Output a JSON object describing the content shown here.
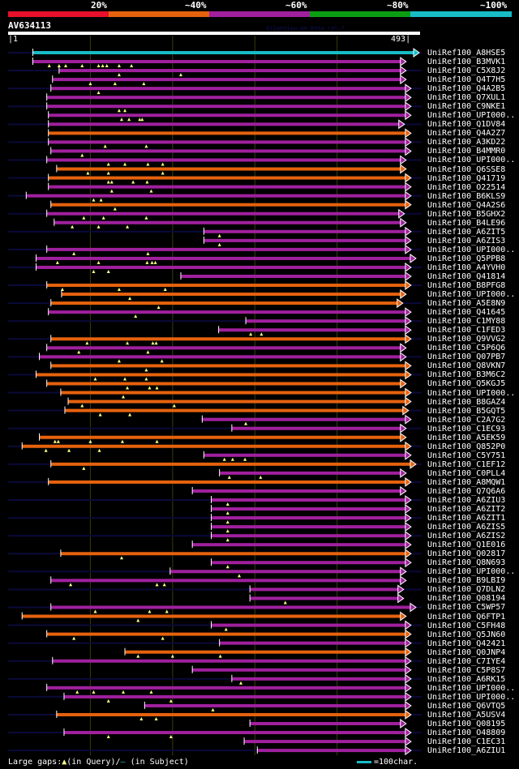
{
  "chart_data": {
    "type": "alignment-overview",
    "title": "AV634113",
    "watermark": "AlignView.pm Beta rel.7",
    "query": {
      "name": "AV634113",
      "start": 1,
      "end": 493
    },
    "identity_scale": [
      {
        "label": "20%",
        "color": "#e8102a"
      },
      {
        "label": "~40%",
        "color": "#e6620e"
      },
      {
        "label": "~60%",
        "color": "#a0209e"
      },
      {
        "label": "~80%",
        "color": "#0c9e12"
      },
      {
        "label": "~100%",
        "color": "#17bcc6"
      }
    ],
    "gridlines_query_pos": [
      100,
      200,
      300,
      400
    ],
    "legend": {
      "large_gaps": "Large gaps:",
      "in_query": "(in Query)/",
      "in_subject": "(in Subject)",
      "scale_key": "=100char."
    },
    "hits": [
      {
        "name": "UniRef100_A8HSE5",
        "start": 30,
        "end": 493,
        "color": "cyan",
        "gaps": []
      },
      {
        "name": "UniRef100_B3MVK1",
        "start": 30,
        "end": 477,
        "color": "purple",
        "gaps": [
          50,
          62,
          70,
          90,
          110,
          115,
          120,
          135,
          150
        ]
      },
      {
        "name": "UniRef100_C5X8J2",
        "start": 62,
        "end": 477,
        "color": "purple",
        "gaps": [
          135,
          210
        ]
      },
      {
        "name": "UniRef100_Q4T7H5",
        "start": 54,
        "end": 477,
        "color": "purple",
        "gaps": [
          100,
          130,
          165
        ]
      },
      {
        "name": "UniRef100_Q4A2B5",
        "start": 52,
        "end": 483,
        "color": "purple",
        "gaps": [
          110
        ]
      },
      {
        "name": "UniRef100_Q7XUL1",
        "start": 47,
        "end": 483,
        "color": "purple",
        "gaps": []
      },
      {
        "name": "UniRef100_C9NKE1",
        "start": 47,
        "end": 483,
        "color": "purple",
        "gaps": [
          135,
          142
        ]
      },
      {
        "name": "UniRef100_UPI000..1",
        "start": 49,
        "end": 483,
        "color": "purple",
        "gaps": [
          138,
          147,
          160,
          163
        ]
      },
      {
        "name": "UniRef100_Q1DV84",
        "start": 49,
        "end": 475,
        "color": "purple",
        "gaps": []
      },
      {
        "name": "UniRef100_Q4A2Z7",
        "start": 49,
        "end": 483,
        "color": "orange",
        "gaps": []
      },
      {
        "name": "UniRef100_A3KD22",
        "start": 49,
        "end": 483,
        "color": "purple",
        "gaps": [
          118,
          168
        ]
      },
      {
        "name": "UniRef100_B4MMR0",
        "start": 52,
        "end": 483,
        "color": "purple",
        "gaps": [
          90
        ]
      },
      {
        "name": "UniRef100_UPI000..2",
        "start": 47,
        "end": 477,
        "color": "purple",
        "gaps": [
          122,
          142,
          170,
          188
        ]
      },
      {
        "name": "UniRef100_Q6SSE8",
        "start": 59,
        "end": 477,
        "color": "orange",
        "gaps": [
          97,
          122,
          188
        ]
      },
      {
        "name": "UniRef100_Q41719",
        "start": 49,
        "end": 483,
        "color": "orange",
        "gaps": [
          122,
          126,
          152,
          169
        ]
      },
      {
        "name": "UniRef100_O22514",
        "start": 49,
        "end": 483,
        "color": "purple",
        "gaps": [
          126,
          174
        ]
      },
      {
        "name": "UniRef100_B6KLS9",
        "start": 22,
        "end": 483,
        "color": "purple",
        "gaps": [
          104,
          113
        ]
      },
      {
        "name": "UniRef100_Q4A2S6",
        "start": 52,
        "end": 483,
        "color": "orange",
        "gaps": [
          130
        ]
      },
      {
        "name": "UniRef100_B5GHX2",
        "start": 47,
        "end": 475,
        "color": "purple",
        "gaps": [
          92,
          116,
          168
        ]
      },
      {
        "name": "UniRef100_B4LE96",
        "start": 56,
        "end": 477,
        "color": "purple",
        "gaps": [
          78,
          110,
          145
        ]
      },
      {
        "name": "UniRef100_A6ZIT5",
        "start": 238,
        "end": 483,
        "color": "purple",
        "gaps": [
          257
        ]
      },
      {
        "name": "UniRef100_A6ZIS3",
        "start": 238,
        "end": 483,
        "color": "purple",
        "gaps": [
          257
        ]
      },
      {
        "name": "UniRef100_UPI000..3",
        "start": 47,
        "end": 483,
        "color": "purple",
        "gaps": [
          80,
          170
        ]
      },
      {
        "name": "UniRef100_Q5PPB8",
        "start": 34,
        "end": 489,
        "color": "purple",
        "gaps": [
          60,
          110,
          169,
          175,
          179
        ]
      },
      {
        "name": "UniRef100_A4YVH0",
        "start": 34,
        "end": 483,
        "color": "purple",
        "gaps": [
          104,
          122
        ]
      },
      {
        "name": "UniRef100_Q41814",
        "start": 210,
        "end": 483,
        "color": "purple",
        "gaps": []
      },
      {
        "name": "UniRef100_B8PFG8",
        "start": 47,
        "end": 483,
        "color": "orange",
        "gaps": [
          66,
          135,
          191
        ]
      },
      {
        "name": "UniRef100_UPI000..4",
        "start": 65,
        "end": 477,
        "color": "orange",
        "gaps": [
          148
        ]
      },
      {
        "name": "UniRef100_A5E8N9",
        "start": 52,
        "end": 473,
        "color": "orange",
        "gaps": [
          183
        ]
      },
      {
        "name": "UniRef100_Q41645",
        "start": 49,
        "end": 483,
        "color": "purple",
        "gaps": [
          155
        ]
      },
      {
        "name": "UniRef100_C1MY88",
        "start": 289,
        "end": 483,
        "color": "purple",
        "gaps": []
      },
      {
        "name": "UniRef100_C1FED3",
        "start": 256,
        "end": 483,
        "color": "purple",
        "gaps": [
          295,
          308
        ]
      },
      {
        "name": "UniRef100_Q9VVG2",
        "start": 52,
        "end": 483,
        "color": "orange",
        "gaps": [
          96,
          145,
          176,
          180
        ]
      },
      {
        "name": "UniRef100_C5P6Q6",
        "start": 47,
        "end": 477,
        "color": "purple",
        "gaps": [
          86,
          170
        ]
      },
      {
        "name": "UniRef100_Q07PB7",
        "start": 38,
        "end": 477,
        "color": "purple",
        "gaps": [
          135,
          187
        ]
      },
      {
        "name": "UniRef100_Q8VKN7",
        "start": 52,
        "end": 483,
        "color": "orange",
        "gaps": [
          168
        ]
      },
      {
        "name": "UniRef100_B3M6C2",
        "start": 34,
        "end": 483,
        "color": "orange",
        "gaps": [
          106,
          142,
          168
        ]
      },
      {
        "name": "UniRef100_Q5KGJ5",
        "start": 47,
        "end": 477,
        "color": "orange",
        "gaps": [
          145,
          172,
          181
        ]
      },
      {
        "name": "UniRef100_UPI000..5",
        "start": 64,
        "end": 483,
        "color": "orange",
        "gaps": [
          140
        ]
      },
      {
        "name": "UniRef100_B8GAZ4",
        "start": 73,
        "end": 483,
        "color": "orange",
        "gaps": [
          90,
          202
        ]
      },
      {
        "name": "UniRef100_B5GQT5",
        "start": 69,
        "end": 480,
        "color": "orange",
        "gaps": [
          112,
          148
        ]
      },
      {
        "name": "UniRef100_C2A7G2",
        "start": 236,
        "end": 483,
        "color": "purple",
        "gaps": [
          289
        ]
      },
      {
        "name": "UniRef100_C1EC93",
        "start": 272,
        "end": 477,
        "color": "purple",
        "gaps": []
      },
      {
        "name": "UniRef100_A5EK59",
        "start": 38,
        "end": 477,
        "color": "orange",
        "gaps": [
          57,
          61,
          100,
          139,
          181
        ]
      },
      {
        "name": "UniRef100_Q852P0",
        "start": 17,
        "end": 483,
        "color": "orange",
        "gaps": [
          46,
          74,
          111
        ]
      },
      {
        "name": "UniRef100_C5Y751",
        "start": 238,
        "end": 483,
        "color": "purple",
        "gaps": [
          263,
          273,
          288
        ]
      },
      {
        "name": "UniRef100_C1EF12",
        "start": 52,
        "end": 489,
        "color": "orange",
        "gaps": [
          92
        ]
      },
      {
        "name": "UniRef100_C0PLL4",
        "start": 257,
        "end": 477,
        "color": "purple",
        "gaps": [
          269,
          307
        ]
      },
      {
        "name": "UniRef100_A8MQW1",
        "start": 49,
        "end": 483,
        "color": "orange",
        "gaps": []
      },
      {
        "name": "UniRef100_Q7Q6A6",
        "start": 224,
        "end": 477,
        "color": "purple",
        "gaps": []
      },
      {
        "name": "UniRef100_A6ZIU3",
        "start": 247,
        "end": 483,
        "color": "purple",
        "gaps": [
          267
        ]
      },
      {
        "name": "UniRef100_A6ZIT2",
        "start": 247,
        "end": 483,
        "color": "purple",
        "gaps": [
          267
        ]
      },
      {
        "name": "UniRef100_A6ZIT1",
        "start": 247,
        "end": 483,
        "color": "purple",
        "gaps": [
          267
        ]
      },
      {
        "name": "UniRef100_A6ZIS5",
        "start": 247,
        "end": 483,
        "color": "purple",
        "gaps": [
          267
        ]
      },
      {
        "name": "UniRef100_A6ZIS2",
        "start": 247,
        "end": 483,
        "color": "purple",
        "gaps": [
          267
        ]
      },
      {
        "name": "UniRef100_Q1E016",
        "start": 224,
        "end": 483,
        "color": "purple",
        "gaps": []
      },
      {
        "name": "UniRef100_Q02817",
        "start": 64,
        "end": 483,
        "color": "orange",
        "gaps": [
          138
        ]
      },
      {
        "name": "UniRef100_Q8N693",
        "start": 247,
        "end": 483,
        "color": "purple",
        "gaps": [
          267
        ]
      },
      {
        "name": "UniRef100_UPI000..6",
        "start": 197,
        "end": 477,
        "color": "purple",
        "gaps": [
          281
        ]
      },
      {
        "name": "UniRef100_B9LBI9",
        "start": 52,
        "end": 477,
        "color": "purple",
        "gaps": [
          76,
          181,
          190
        ]
      },
      {
        "name": "UniRef100_Q7DLN2",
        "start": 294,
        "end": 474,
        "color": "purple",
        "gaps": []
      },
      {
        "name": "UniRef100_Q08194",
        "start": 294,
        "end": 474,
        "color": "purple",
        "gaps": [
          337
        ]
      },
      {
        "name": "UniRef100_C5WP57",
        "start": 52,
        "end": 489,
        "color": "purple",
        "gaps": [
          106,
          172,
          193
        ]
      },
      {
        "name": "UniRef100_Q6FTP1",
        "start": 17,
        "end": 477,
        "color": "orange",
        "gaps": [
          158
        ]
      },
      {
        "name": "UniRef100_C5FH48",
        "start": 247,
        "end": 483,
        "color": "purple",
        "gaps": [
          265
        ]
      },
      {
        "name": "UniRef100_Q5JN60",
        "start": 47,
        "end": 483,
        "color": "orange",
        "gaps": [
          80,
          188
        ]
      },
      {
        "name": "UniRef100_Q42421",
        "start": 257,
        "end": 483,
        "color": "purple",
        "gaps": []
      },
      {
        "name": "UniRef100_Q0JNP4",
        "start": 142,
        "end": 483,
        "color": "orange",
        "gaps": [
          158,
          200,
          258
        ]
      },
      {
        "name": "UniRef100_C7IYE4",
        "start": 54,
        "end": 483,
        "color": "purple",
        "gaps": []
      },
      {
        "name": "UniRef100_C5P8S7",
        "start": 224,
        "end": 483,
        "color": "purple",
        "gaps": []
      },
      {
        "name": "UniRef100_A6RK15",
        "start": 272,
        "end": 483,
        "color": "purple",
        "gaps": [
          283
        ]
      },
      {
        "name": "UniRef100_UPI000..7",
        "start": 47,
        "end": 483,
        "color": "purple",
        "gaps": [
          84,
          104,
          140,
          174
        ]
      },
      {
        "name": "UniRef100_UPI000..8",
        "start": 68,
        "end": 483,
        "color": "purple",
        "gaps": [
          122,
          198
        ]
      },
      {
        "name": "UniRef100_Q6VTQ5",
        "start": 166,
        "end": 483,
        "color": "purple",
        "gaps": [
          249
        ]
      },
      {
        "name": "UniRef100_A5USV4",
        "start": 59,
        "end": 483,
        "color": "orange",
        "gaps": [
          162,
          180
        ]
      },
      {
        "name": "UniRef100_Q08195",
        "start": 294,
        "end": 477,
        "color": "purple",
        "gaps": []
      },
      {
        "name": "UniRef100_O48809",
        "start": 68,
        "end": 483,
        "color": "purple",
        "gaps": [
          122,
          198
        ]
      },
      {
        "name": "UniRef100_C1EC31",
        "start": 287,
        "end": 483,
        "color": "purple",
        "gaps": []
      },
      {
        "name": "UniRef100_A6ZIU1",
        "start": 303,
        "end": 483,
        "color": "purple",
        "gaps": []
      }
    ]
  }
}
